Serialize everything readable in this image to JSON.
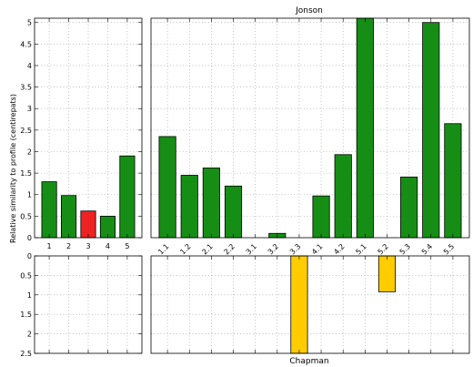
{
  "chart_data": [
    {
      "id": "top-left",
      "type": "bar",
      "categories": [
        "1",
        "2",
        "3",
        "4",
        "5"
      ],
      "values": [
        1.3,
        0.98,
        0.62,
        0.5,
        1.9
      ],
      "colors": [
        "#168e16",
        "#168e16",
        "#ee2222",
        "#168e16",
        "#168e16"
      ],
      "ylim": [
        0,
        5.1
      ],
      "yticks": [
        0,
        0.5,
        1,
        1.5,
        2,
        2.5,
        3,
        3.5,
        4,
        4.5,
        5
      ],
      "ytick_labels": [
        "0",
        "0.5",
        "1",
        "1.5",
        "2",
        "2.5",
        "3",
        "3.5",
        "4",
        "4.5",
        "5"
      ],
      "grid": true
    },
    {
      "id": "top-right",
      "type": "bar",
      "title": "Jonson",
      "categories": [
        "1.1",
        "1.2",
        "2.1",
        "2.2",
        "3.1",
        "3.2",
        "3.3",
        "4.1",
        "4.2",
        "5.1",
        "5.2",
        "5.3",
        "5.4",
        "5.5"
      ],
      "values": [
        2.35,
        1.45,
        1.62,
        1.2,
        0,
        0.1,
        0,
        0.97,
        1.93,
        5.1,
        0,
        1.41,
        5.0,
        2.65
      ],
      "colors": [
        "#168e16",
        "#168e16",
        "#168e16",
        "#168e16",
        "#168e16",
        "#168e16",
        "#168e16",
        "#168e16",
        "#168e16",
        "#168e16",
        "#168e16",
        "#168e16",
        "#168e16",
        "#168e16"
      ],
      "ylim": [
        0,
        5.1
      ],
      "grid": true
    },
    {
      "id": "bottom-left",
      "type": "bar",
      "categories": [
        "1",
        "2",
        "3",
        "4",
        "5"
      ],
      "values": [
        0,
        0,
        0,
        0,
        0
      ],
      "colors": [
        "#ffcc00",
        "#ffcc00",
        "#ffcc00",
        "#ffcc00",
        "#ffcc00"
      ],
      "ylim": [
        0,
        2.5
      ],
      "inverted": true,
      "yticks": [
        0,
        0.5,
        1,
        1.5,
        2,
        2.5
      ],
      "ytick_labels": [
        "0",
        "0.5",
        "1",
        "1.5",
        "2",
        "2.5"
      ],
      "grid": true
    },
    {
      "id": "bottom-right",
      "type": "bar",
      "xlabel": "Chapman",
      "categories": [
        "1.1",
        "1.2",
        "2.1",
        "2.2",
        "3.1",
        "3.2",
        "3.3",
        "4.1",
        "4.2",
        "5.1",
        "5.2",
        "5.3",
        "5.4",
        "5.5"
      ],
      "values": [
        0,
        0,
        0,
        0,
        0,
        0,
        2.5,
        0,
        0,
        0,
        0.92,
        0,
        0,
        0
      ],
      "colors": [
        "#ffcc00",
        "#ffcc00",
        "#ffcc00",
        "#ffcc00",
        "#ffcc00",
        "#ffcc00",
        "#ffcc00",
        "#ffcc00",
        "#ffcc00",
        "#ffcc00",
        "#ffcc00",
        "#ffcc00",
        "#ffcc00",
        "#ffcc00"
      ],
      "ylim": [
        0,
        2.5
      ],
      "inverted": true,
      "grid": true
    }
  ],
  "ylabel": "Relative similarity to profile (centirepats)"
}
